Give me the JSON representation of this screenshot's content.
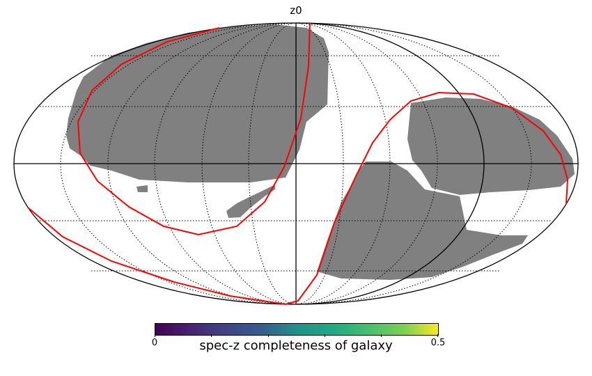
{
  "title": "z0",
  "map": {
    "projection": "mollweide",
    "background_color": "#ffffff",
    "footprint_color": "#808080",
    "curve_color": "#ff0000",
    "graticule": "dotted"
  },
  "colorbar": {
    "label": "spec-z completeness of galaxy",
    "colormap": "viridis",
    "min": 0,
    "max": 0.5,
    "min_label": "0",
    "max_label": "0.5"
  }
}
